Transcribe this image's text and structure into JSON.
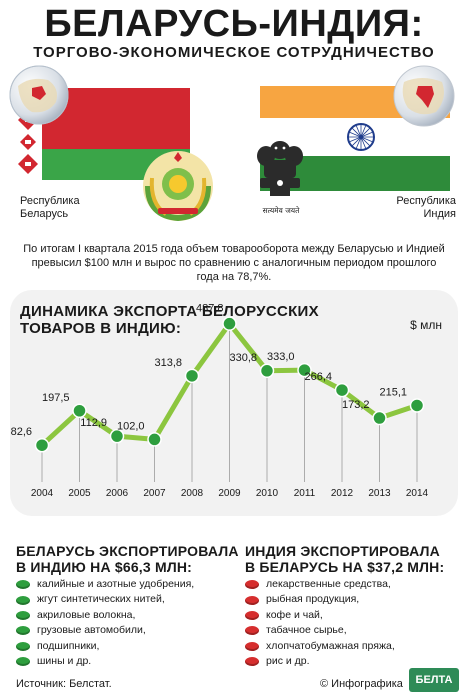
{
  "header": {
    "title": "БЕЛАРУСЬ-ИНДИЯ:",
    "subtitle": "ТОРГОВО-ЭКОНОМИЧЕСКОЕ СОТРУДНИЧЕСТВО"
  },
  "belarus": {
    "label_line1": "Республика",
    "label_line2": "Беларусь"
  },
  "india": {
    "label_line1": "Республика",
    "label_line2": "Индия",
    "motto": "सत्यमेव जयते"
  },
  "intro_text": "По итогам I квартала 2015 года объем товарооборота между Беларусью и Индией превысил $100 млн и вырос по сравнению с аналогичным периодом прошлого года на 78,7%.",
  "chart_data": {
    "type": "line",
    "title_line1": "ДИНАМИКА ЭКСПОРТА БЕЛОРУССКИХ",
    "title_line2": "ТОВАРОВ В ИНДИЮ:",
    "ylabel": "$ млн",
    "categories": [
      "2004",
      "2005",
      "2006",
      "2007",
      "2008",
      "2009",
      "2010",
      "2011",
      "2012",
      "2013",
      "2014"
    ],
    "values": [
      82.6,
      197.5,
      112.9,
      102.0,
      313.8,
      487.8,
      330.8,
      333.0,
      266.4,
      173.2,
      215.1
    ],
    "value_labels": [
      "82,6",
      "197,5",
      "112,9",
      "102,0",
      "313,8",
      "487,8",
      "330,8",
      "333,0",
      "266,4",
      "173,2",
      "215,1"
    ],
    "grid": false,
    "legend": "none",
    "line_color": "#8cc63f",
    "marker_color": "#2e9e3e"
  },
  "belarus_exports": {
    "title_line1": "БЕЛАРУСЬ ЭКСПОРТИРОВАЛА",
    "title_line2": "В ИНДИЮ НА $66,3 МЛН:",
    "items": [
      "калийные и азотные удобрения,",
      "жгут синтетических нитей,",
      "акриловые волокна,",
      "грузовые автомобили,",
      "подшипники,",
      "шины и др."
    ],
    "bullet_color": "#2e9e3e"
  },
  "india_exports": {
    "title_line1": "ИНДИЯ ЭКСПОРТИРОВАЛА",
    "title_line2": "В БЕЛАРУСЬ НА $37,2 МЛН:",
    "items": [
      "лекарственные средства,",
      "рыбная продукция,",
      "кофе и чай,",
      "табачное сырье,",
      "хлопчатобумажная пряжа,",
      "рис и др."
    ],
    "bullet_color": "#d62e2e"
  },
  "footer": {
    "source": "Источник: Белстат.",
    "credit": "© Инфографика",
    "logo_text": "БЕЛТА"
  },
  "colors": {
    "belarus_red": "#d22730",
    "belarus_green": "#3aa548",
    "india_saffron": "#f7a541",
    "india_green": "#2e8b3a",
    "chakra_blue": "#1f3c8c"
  }
}
